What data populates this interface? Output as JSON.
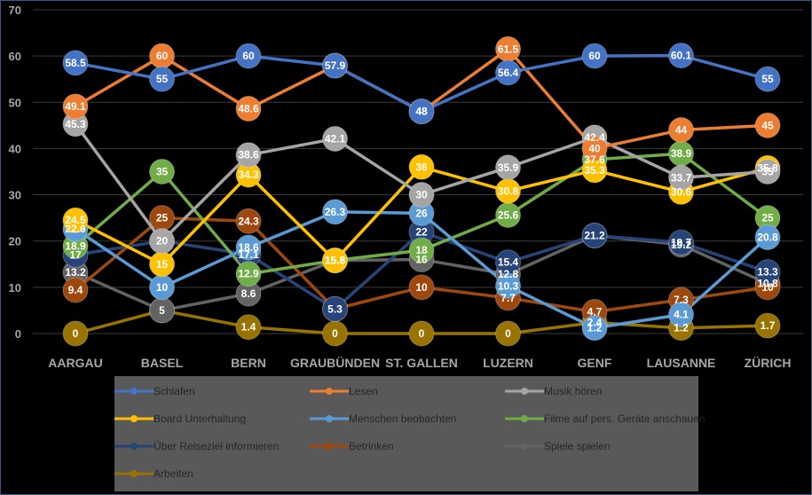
{
  "chart_data": {
    "type": "line",
    "title": "",
    "xlabel": "",
    "ylabel": "",
    "ylim": [
      0,
      70
    ],
    "yticks": [
      0,
      10,
      20,
      30,
      40,
      50,
      60,
      70
    ],
    "grid": true,
    "legend_position": "bottom",
    "categories": [
      "AARGAU",
      "BASEL",
      "BERN",
      "GRAUBÜNDEN",
      "ST. GALLEN",
      "LUZERN",
      "GENF",
      "LAUSANNE",
      "ZÜRICH"
    ],
    "series": [
      {
        "name": "Schlafen",
        "color": "#4472c4",
        "values": [
          58.5,
          55,
          60,
          57.9,
          48,
          56.4,
          60,
          60.1,
          55
        ],
        "labels": [
          "58.5",
          "55",
          "60",
          "",
          "48",
          "56.4",
          "60",
          "60.1",
          "55"
        ]
      },
      {
        "name": "Lesen",
        "color": "#ed7d31",
        "values": [
          49.1,
          60,
          48.6,
          57.9,
          48,
          61.5,
          40,
          44,
          45
        ],
        "labels": [
          "49.1",
          "60",
          "48.6",
          "57.9",
          "48",
          "61.5",
          "40",
          "44",
          "45"
        ]
      },
      {
        "name": "Musik hören",
        "color": "#a5a5a5",
        "values": [
          45.3,
          20,
          38.6,
          42.1,
          30,
          35.9,
          42.4,
          33.7,
          35
        ],
        "labels": [
          "45.3",
          "",
          "38.6",
          "42.1",
          "30",
          "35.9",
          "42.4",
          "33.7",
          "35"
        ]
      },
      {
        "name": "Board Unterhaltung",
        "color": "#ffc000",
        "values": [
          24.5,
          15,
          34.3,
          15.8,
          36,
          30.8,
          35.3,
          30.6,
          35.8
        ],
        "labels": [
          "24.5",
          "15",
          "34.3",
          "15.8",
          "36",
          "30.8",
          "35.3",
          "30.6",
          "35.8"
        ]
      },
      {
        "name": "Menschen beobachten",
        "color": "#5b9bd5",
        "values": [
          22.6,
          10,
          18.6,
          26.3,
          26,
          10.3,
          1.2,
          4.1,
          20.8
        ],
        "labels": [
          "22.6",
          "10",
          "18.6",
          "26.3",
          "26",
          "10.3",
          "1.2",
          "4.1",
          "20.8"
        ]
      },
      {
        "name": "Filme auf pers. Geräte anschauen",
        "color": "#70ad47",
        "values": [
          18.9,
          35,
          12.9,
          15.8,
          18,
          25.6,
          37.6,
          38.9,
          25
        ],
        "labels": [
          "18.9",
          "35",
          "12.9",
          "15.8",
          "18",
          "25.6",
          "37.6",
          "38.9",
          "25"
        ]
      },
      {
        "name": "Über Reiseziel informieren",
        "color": "#264478",
        "values": [
          17,
          20,
          17.1,
          5.3,
          22,
          15.4,
          21.2,
          19.7,
          13.3
        ],
        "labels": [
          "17",
          "20",
          "17.1",
          "",
          "22",
          "15.4",
          "",
          "19.7",
          "13.3"
        ]
      },
      {
        "name": "Betrinken",
        "color": "#9e480e",
        "values": [
          9.4,
          25,
          24.3,
          5.3,
          10,
          7.7,
          4.7,
          7.3,
          10
        ],
        "labels": [
          "9.4",
          "25",
          "24.3",
          "5.3",
          "10",
          "7.7",
          "4.7",
          "7.3",
          "10"
        ]
      },
      {
        "name": "Spiele spielen",
        "color": "#636363",
        "values": [
          13.2,
          5,
          8.6,
          15.8,
          16,
          12.8,
          21.2,
          19.2,
          10.8
        ],
        "labels": [
          "13.2",
          "",
          "8.6",
          "15.8",
          "16",
          "12.8",
          "21.2",
          "19.2",
          "10.8"
        ]
      },
      {
        "name": "Arbeiten",
        "color": "#997300",
        "values": [
          0,
          5,
          1.4,
          0,
          0,
          0,
          2.4,
          1.2,
          1.7
        ],
        "labels": [
          "0",
          "5",
          "1.4",
          "0",
          "0",
          "0",
          "2.4",
          "1.2",
          "1.7"
        ]
      }
    ]
  }
}
